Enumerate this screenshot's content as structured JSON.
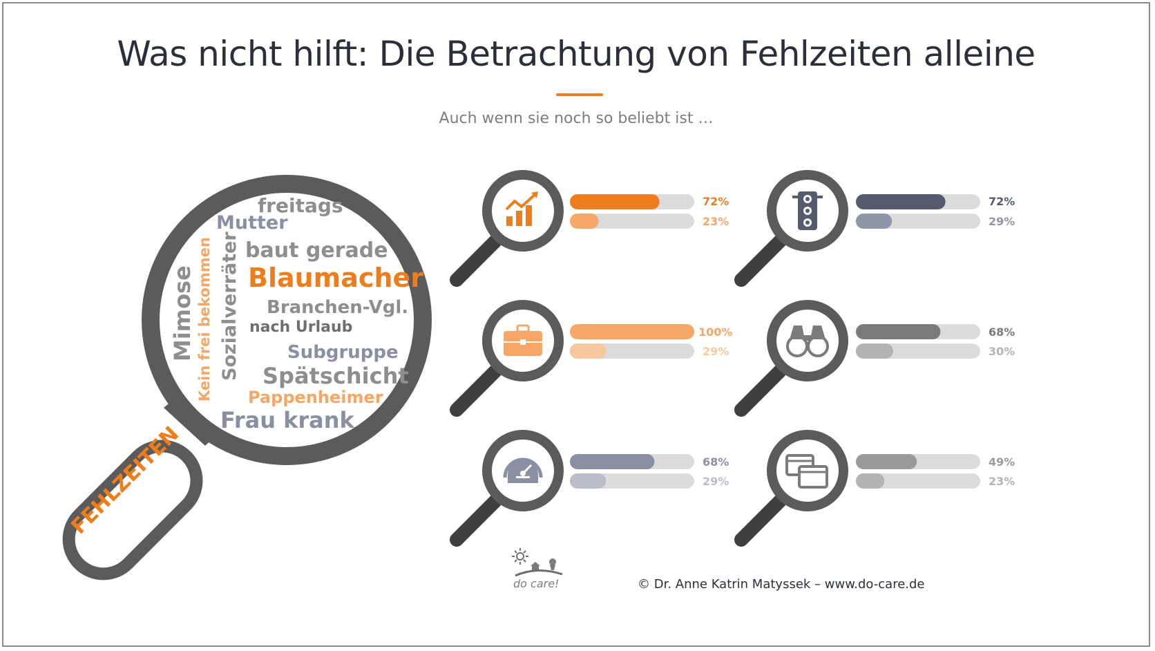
{
  "title": "Was nicht hilft: Die Betrachtung von Fehlzeiten alleine",
  "subtitle": "Auch wenn sie noch so beliebt ist …",
  "magnifier_label": "FEHLZEITEN",
  "word_cloud": {
    "freitags": "freitags",
    "mutter": "Mutter",
    "baut_gerade": "baut gerade",
    "blaumacher": "Blaumacher",
    "branchen": "Branchen-Vgl.",
    "nach_urlaub": "nach Urlaub",
    "subgruppe": "Subgruppe",
    "spaetschicht": "Spätschicht",
    "pappenheimer": "Pappenheimer",
    "frau_krank": "Frau krank",
    "mimose": "Mimose",
    "kein_frei": "Kein frei bekommen",
    "sozialverraeter": "Sozialverräter"
  },
  "colors": {
    "orange": "#f07d1c",
    "orange_light": "#f5a767",
    "orange_lighter": "#f7c89d",
    "track": "#dcdcdc",
    "slate": "#545b6c",
    "slate_light": "#8f96a8",
    "gray": "#7b7b7b",
    "gray_light": "#b4b4b4",
    "blue_gray": "#8a8fa3",
    "blue_gray_light": "#b9bdc9",
    "ring": "#5b5b5b",
    "text_dark": "#2b2f3a"
  },
  "metrics": [
    {
      "icon": "growth-chart-icon",
      "bar1": 72,
      "label1": "72%",
      "bar2": 23,
      "label2": "23%"
    },
    {
      "icon": "traffic-light-icon",
      "bar1": 72,
      "label1": "72%",
      "bar2": 29,
      "label2": "29%"
    },
    {
      "icon": "briefcase-icon",
      "bar1": 100,
      "label1": "100%",
      "bar2": 29,
      "label2": "29%"
    },
    {
      "icon": "binoculars-icon",
      "bar1": 68,
      "label1": "68%",
      "bar2": 30,
      "label2": "30%"
    },
    {
      "icon": "speedometer-icon",
      "bar1": 68,
      "label1": "68%",
      "bar2": 29,
      "label2": "29%"
    },
    {
      "icon": "browser-windows-icon",
      "bar1": 49,
      "label1": "49%",
      "bar2": 23,
      "label2": "23%"
    }
  ],
  "logo_text": "do care!",
  "footer": "© Dr. Anne Katrin Matyssek – www.do-care.de"
}
